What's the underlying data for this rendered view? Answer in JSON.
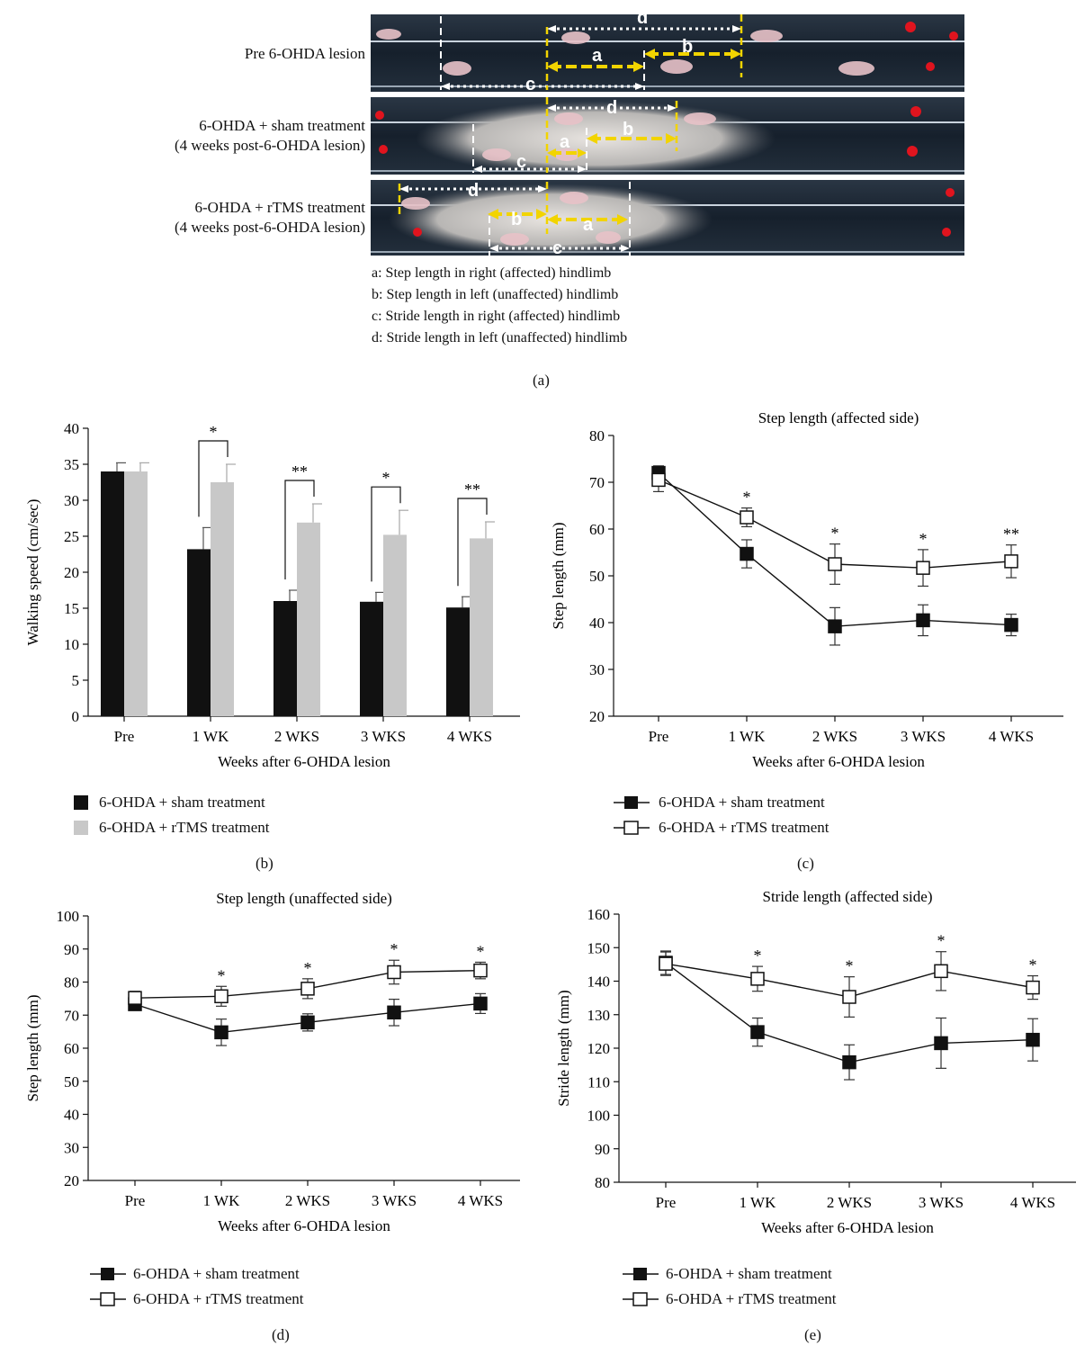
{
  "panel_a": {
    "rows": [
      {
        "label_lines": [
          "Pre 6-OHDA lesion"
        ]
      },
      {
        "label_lines": [
          "6-OHDA + sham treatment",
          "(4 weeks post-6-OHDA lesion)"
        ]
      },
      {
        "label_lines": [
          "6-OHDA + rTMS treatment",
          "(4 weeks post-6-OHDA lesion)"
        ]
      }
    ],
    "marker_letters": [
      "a",
      "b",
      "c",
      "d"
    ],
    "legend_lines": [
      "a: Step length in right (affected) hindlimb",
      "b: Step length in left (unaffected) hindlimb",
      "c: Stride length in right (affected) hindlimb",
      "d: Stride length in left (unaffected) hindlimb"
    ],
    "label": "(a)"
  },
  "legend": {
    "sham": "6-OHDA + sham treatment",
    "rtms": "6-OHDA + rTMS treatment"
  },
  "colors": {
    "sham": "#111111",
    "rtms": "#c8c8c8",
    "arrow_yellow": "#f2d400"
  },
  "chart_data": [
    {
      "id": "b",
      "type": "bar",
      "title": "",
      "xlabel": "Weeks after 6-OHDA lesion",
      "ylabel": "Walking speed (cm/sec)",
      "ylim": [
        0,
        40
      ],
      "yticks": [
        "0",
        "5",
        "10",
        "15",
        "20",
        "25",
        "30",
        "35",
        "40"
      ],
      "categories": [
        "Pre",
        "1 WK",
        "2 WKS",
        "3 WKS",
        "4 WKS"
      ],
      "series": [
        {
          "name": "6-OHDA + sham treatment",
          "values": [
            34,
            23.2,
            16,
            15.9,
            15.1
          ],
          "err": [
            1.2,
            3.0,
            1.5,
            1.3,
            1.5
          ]
        },
        {
          "name": "6-OHDA + rTMS treatment",
          "values": [
            34,
            32.5,
            26.9,
            25.2,
            24.7
          ],
          "err": [
            1.2,
            2.5,
            2.6,
            3.4,
            2.3
          ]
        }
      ],
      "significance": [
        "",
        "*",
        "**",
        "*",
        "**"
      ],
      "panel_label": "(b)"
    },
    {
      "id": "c",
      "type": "line",
      "title": "Step length (affected side)",
      "xlabel": "Weeks after 6-OHDA lesion",
      "ylabel": "Step length (mm)",
      "ylim": [
        20,
        80
      ],
      "yticks": [
        "20",
        "30",
        "40",
        "50",
        "60",
        "70",
        "80"
      ],
      "categories": [
        "Pre",
        "1 WK",
        "2 WKS",
        "3 WKS",
        "4 WKS"
      ],
      "series": [
        {
          "name": "6-OHDA + sham treatment",
          "values": [
            72,
            54.7,
            39.2,
            40.5,
            39.5
          ],
          "err": [
            1.5,
            3.0,
            4.0,
            3.3,
            2.3
          ]
        },
        {
          "name": "6-OHDA + rTMS treatment",
          "values": [
            70.5,
            62.5,
            52.5,
            51.7,
            53.1
          ],
          "err": [
            2.5,
            2.0,
            4.3,
            3.9,
            3.5
          ]
        }
      ],
      "significance": [
        "",
        "*",
        "*",
        "*",
        "**"
      ],
      "panel_label": "(c)"
    },
    {
      "id": "d",
      "type": "line",
      "title": "Step length (unaffected side)",
      "xlabel": "Weeks after 6-OHDA lesion",
      "ylabel": "Step length (mm)",
      "ylim": [
        20,
        100
      ],
      "yticks": [
        "20",
        "30",
        "40",
        "50",
        "60",
        "70",
        "80",
        "90",
        "100"
      ],
      "categories": [
        "Pre",
        "1 WK",
        "2 WKS",
        "3 WKS",
        "4 WKS"
      ],
      "series": [
        {
          "name": "6-OHDA + sham treatment",
          "values": [
            73.3,
            64.8,
            67.8,
            70.8,
            73.5
          ],
          "err": [
            1.2,
            4.0,
            2.6,
            4.0,
            3.0
          ]
        },
        {
          "name": "6-OHDA + rTMS treatment",
          "values": [
            75.2,
            75.7,
            78,
            83,
            83.5
          ],
          "err": [
            2.0,
            3.0,
            3.0,
            3.6,
            2.5
          ]
        }
      ],
      "significance": [
        "",
        "*",
        "*",
        "*",
        "*"
      ],
      "panel_label": "(d)"
    },
    {
      "id": "e",
      "type": "line",
      "title": "Stride length (affected side)",
      "xlabel": "Weeks after 6-OHDA lesion",
      "ylabel": "Stride length (mm)",
      "ylim": [
        80,
        160
      ],
      "yticks": [
        "80",
        "90",
        "100",
        "110",
        "120",
        "130",
        "140",
        "150",
        "160"
      ],
      "categories": [
        "Pre",
        "1 WK",
        "2 WKS",
        "3 WKS",
        "4 WKS"
      ],
      "series": [
        {
          "name": "6-OHDA + sham treatment",
          "values": [
            145.5,
            124.8,
            115.8,
            121.5,
            122.5
          ],
          "err": [
            3.5,
            4.2,
            5.2,
            7.5,
            6.3
          ]
        },
        {
          "name": "6-OHDA + rTMS treatment",
          "values": [
            145.2,
            140.7,
            135.3,
            143,
            138.1
          ],
          "err": [
            3.5,
            3.7,
            6.0,
            5.8,
            3.5
          ]
        }
      ],
      "significance": [
        "",
        "*",
        "*",
        "*",
        "*"
      ],
      "panel_label": "(e)"
    }
  ]
}
